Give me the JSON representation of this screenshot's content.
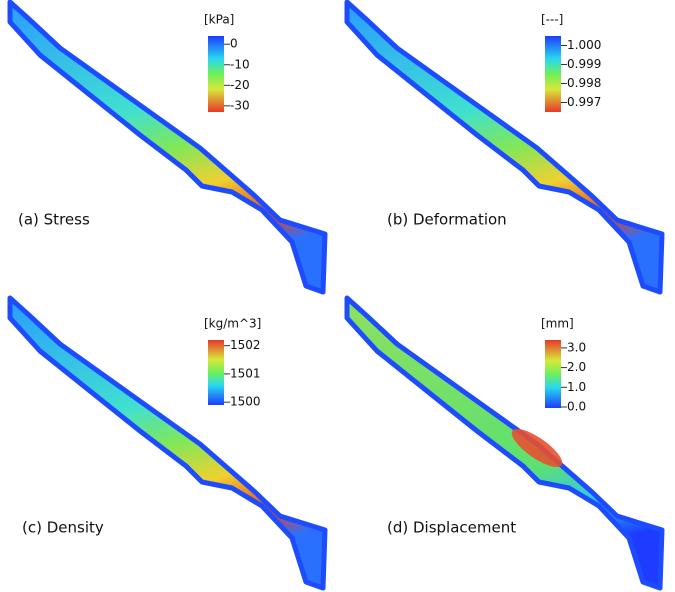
{
  "panels": [
    {
      "caption": "(a) Stress",
      "unit": "[kPa]",
      "colormap": "jet_reversed",
      "colorbar_range": [
        -33,
        4
      ],
      "ticks": [
        0,
        -10,
        -20,
        -30
      ]
    },
    {
      "caption": "(b) Deformation",
      "unit": "[---]",
      "colormap": "jet_reversed",
      "colorbar_range": [
        0.9965,
        1.0005
      ],
      "ticks": [
        {
          "value": 1,
          "label": "1.000"
        },
        0.999,
        0.998,
        0.997
      ]
    },
    {
      "caption": "(c) Density",
      "unit": "[kg/m^3]",
      "colormap": "jet",
      "colorbar_range": [
        1499.9,
        1502.2
      ],
      "ticks": [
        1502,
        1501,
        1500
      ]
    },
    {
      "caption": "(d) Displacement",
      "unit": "[mm]",
      "colormap": "jet",
      "colorbar_range": [
        -0.05,
        3.4
      ],
      "ticks": [
        {
          "value": 3,
          "label": "3.0"
        },
        {
          "value": 2,
          "label": "2.0"
        },
        {
          "value": 1,
          "label": "1.0"
        },
        {
          "value": 0,
          "label": "0.0"
        }
      ]
    }
  ]
}
